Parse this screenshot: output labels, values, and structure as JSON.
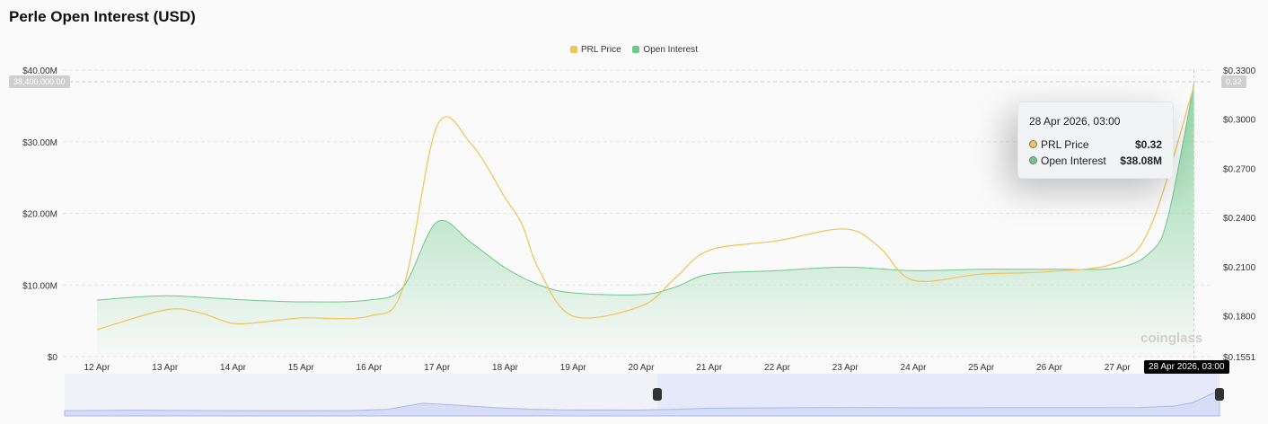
{
  "title": "Perle Open Interest (USD)",
  "watermark": "coinglass",
  "colors": {
    "price": "#f2c255",
    "oi": "#6cc98a",
    "navigator": "#dfe4fb"
  },
  "chart_data": {
    "type": "line",
    "legend_placement": "top-center",
    "grid": true,
    "x_ticks": [
      "12 Apr",
      "13 Apr",
      "14 Apr",
      "15 Apr",
      "16 Apr",
      "17 Apr",
      "18 Apr",
      "19 Apr",
      "20 Apr",
      "21 Apr",
      "22 Apr",
      "23 Apr",
      "24 Apr",
      "25 Apr",
      "26 Apr",
      "27 Apr"
    ],
    "left_axis": {
      "ticks": [
        "$0",
        "$10.00M",
        "$20.00M",
        "$30.00M",
        "$40.00M"
      ],
      "range": [
        0,
        40000000
      ]
    },
    "right_axis": {
      "ticks": [
        "$0.1551",
        "$0.1800",
        "$0.2100",
        "$0.2400",
        "$0.2700",
        "$0.3000",
        "$0.3300"
      ],
      "range": [
        0.1551,
        0.33
      ]
    },
    "series": [
      {
        "name": "PRL Price",
        "axis": "right",
        "type": "line",
        "points": [
          [
            "2026-04-12T00:00",
            0.1715
          ],
          [
            "2026-04-13T00:00",
            0.1836
          ],
          [
            "2026-04-13T12:00",
            0.182
          ],
          [
            "2026-04-14T00:00",
            0.1754
          ],
          [
            "2026-04-14T12:00",
            0.1765
          ],
          [
            "2026-04-15T00:00",
            0.1787
          ],
          [
            "2026-04-16T00:00",
            0.1798
          ],
          [
            "2026-04-16T12:00",
            0.197
          ],
          [
            "2026-04-17T00:00",
            0.296
          ],
          [
            "2026-04-17T12:00",
            0.285
          ],
          [
            "2026-04-18T00:00",
            0.252
          ],
          [
            "2026-04-18T06:00",
            0.2357
          ],
          [
            "2026-04-18T12:00",
            0.208
          ],
          [
            "2026-04-19T00:00",
            0.1798
          ],
          [
            "2026-04-20T00:00",
            0.186
          ],
          [
            "2026-04-20T12:00",
            0.203
          ],
          [
            "2026-04-21T00:00",
            0.22
          ],
          [
            "2026-04-22T00:00",
            0.2258
          ],
          [
            "2026-04-23T00:00",
            0.233
          ],
          [
            "2026-04-23T12:00",
            0.222
          ],
          [
            "2026-04-24T00:00",
            0.2017
          ],
          [
            "2026-04-25T00:00",
            0.2055
          ],
          [
            "2026-04-26T00:00",
            0.207
          ],
          [
            "2026-04-27T00:00",
            0.2127
          ],
          [
            "2026-04-27T12:00",
            0.2357
          ],
          [
            "2026-04-28T03:00",
            0.32
          ]
        ]
      },
      {
        "name": "Open Interest",
        "axis": "left",
        "type": "area",
        "points": [
          [
            "2026-04-12T00:00",
            7900000
          ],
          [
            "2026-04-13T00:00",
            8500000
          ],
          [
            "2026-04-14T00:00",
            8000000
          ],
          [
            "2026-04-15T00:00",
            7650000
          ],
          [
            "2026-04-16T00:00",
            7900000
          ],
          [
            "2026-04-16T12:00",
            9700000
          ],
          [
            "2026-04-17T00:00",
            18800000
          ],
          [
            "2026-04-17T12:00",
            15900000
          ],
          [
            "2026-04-18T00:00",
            12400000
          ],
          [
            "2026-04-18T12:00",
            10000000
          ],
          [
            "2026-04-19T00:00",
            8900000
          ],
          [
            "2026-04-20T00:00",
            8650000
          ],
          [
            "2026-04-20T12:00",
            9700000
          ],
          [
            "2026-04-21T00:00",
            11500000
          ],
          [
            "2026-04-22T00:00",
            12000000
          ],
          [
            "2026-04-23T00:00",
            12500000
          ],
          [
            "2026-04-24T00:00",
            12000000
          ],
          [
            "2026-04-25T00:00",
            12200000
          ],
          [
            "2026-04-26T00:00",
            12200000
          ],
          [
            "2026-04-27T00:00",
            12400000
          ],
          [
            "2026-04-27T12:00",
            14700000
          ],
          [
            "2026-04-27T18:00",
            19700000
          ],
          [
            "2026-04-28T03:00",
            38080000
          ]
        ]
      }
    ],
    "crosshair": {
      "x_label": "28 Apr 2026, 03:00",
      "left_label": "38,400,000.00",
      "right_label": "0.32"
    },
    "tooltip": {
      "date": "28 Apr 2026, 03:00",
      "rows": [
        {
          "label": "PRL Price",
          "value": "$0.32"
        },
        {
          "label": "Open Interest",
          "value": "$38.08M"
        }
      ]
    }
  }
}
